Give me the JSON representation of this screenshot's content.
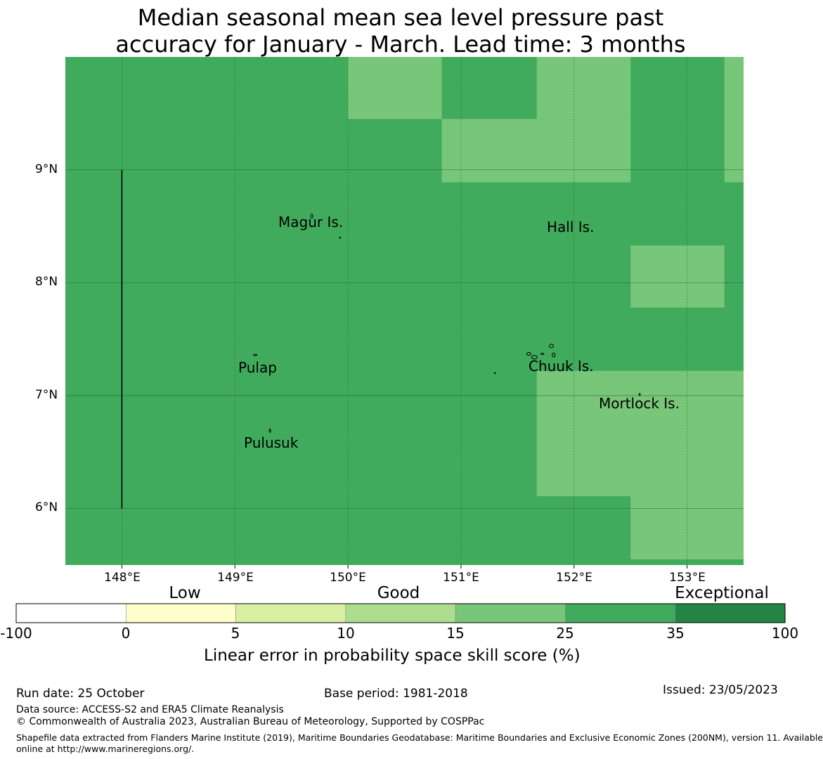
{
  "title": {
    "line1": "Median seasonal mean sea level pressure past",
    "line2": "accuracy for January - March. Lead time: 3 months"
  },
  "map": {
    "lon_range": [
      147.5,
      153.5
    ],
    "lat_range": [
      5.5,
      10.0
    ],
    "lat_ticks": [
      {
        "value": 9,
        "label": "9°N"
      },
      {
        "value": 8,
        "label": "8°N"
      },
      {
        "value": 7,
        "label": "7°N"
      },
      {
        "value": 6,
        "label": "6°N"
      }
    ],
    "lon_ticks": [
      {
        "value": 148,
        "label": "148°E"
      },
      {
        "value": 149,
        "label": "149°E"
      },
      {
        "value": 150,
        "label": "150°E"
      },
      {
        "value": 151,
        "label": "151°E"
      },
      {
        "value": 152,
        "label": "152°E"
      },
      {
        "value": 153,
        "label": "153°E"
      }
    ],
    "background_color": "#41ab5d",
    "cells": [
      {
        "lon": [
          150.0,
          150.83
        ],
        "lat": [
          9.45,
          10.0
        ],
        "skill_band": "15-25"
      },
      {
        "lon": [
          150.83,
          152.5
        ],
        "lat": [
          8.89,
          9.45
        ],
        "skill_band": "15-25"
      },
      {
        "lon": [
          151.67,
          152.5
        ],
        "lat": [
          9.45,
          10.0
        ],
        "skill_band": "15-25"
      },
      {
        "lon": [
          153.33,
          153.5
        ],
        "lat": [
          8.89,
          10.0
        ],
        "skill_band": "15-25"
      },
      {
        "lon": [
          152.5,
          153.33
        ],
        "lat": [
          7.78,
          8.33
        ],
        "skill_band": "15-25"
      },
      {
        "lon": [
          151.67,
          153.5
        ],
        "lat": [
          6.11,
          7.22
        ],
        "skill_band": "15-25"
      },
      {
        "lon": [
          152.5,
          153.5
        ],
        "lat": [
          5.55,
          6.11
        ],
        "skill_band": "15-25"
      }
    ],
    "boundary_line": {
      "lon": 148.0,
      "lat": [
        6.0,
        9.0
      ]
    },
    "places": [
      {
        "name": "Magur Is.",
        "lon": 149.68,
        "lat": 8.57
      },
      {
        "name": "Hall Is.",
        "lon": 151.93,
        "lat": 8.5
      },
      {
        "name": "Pulap",
        "lon": 149.18,
        "lat": 7.36
      },
      {
        "name": "Chuuk Is.",
        "lon": 151.75,
        "lat": 7.4
      },
      {
        "name": "Mortlock Is.",
        "lon": 152.58,
        "lat": 6.95
      },
      {
        "name": "Pulusuk",
        "lon": 149.31,
        "lat": 6.69
      }
    ]
  },
  "legend": {
    "categories": {
      "low": "Low",
      "good": "Good",
      "exceptional": "Exceptional"
    },
    "ticks": [
      "-100",
      "0",
      "5",
      "10",
      "15",
      "25",
      "35",
      "100"
    ],
    "colors": [
      "#ffffff",
      "#ffffcc",
      "#d9f0a3",
      "#addd8e",
      "#78c679",
      "#41ab5d",
      "#238443"
    ],
    "label": "Linear error in probability space skill score (%)"
  },
  "footer": {
    "run_date": "Run date: 25 October",
    "base_period": "Base period: 1981-2018",
    "issued": "Issued: 23/05/2023",
    "data_source": "Data source: ACCESS-S2 and ERA5 Climate Reanalysis",
    "copyright": "© Commonwealth of Australia 2023, Australian Bureau of Meteorology, Supported by COSPPac",
    "shapefile_line1": "Shapefile data extracted from Flanders Marine Institute (2019), Maritime Boundaries Geodatabase: Maritime Boundaries and Exclusive Economic Zones (200NM), version 11. Available",
    "shapefile_line2": "online at http://www.marineregions.org/."
  }
}
